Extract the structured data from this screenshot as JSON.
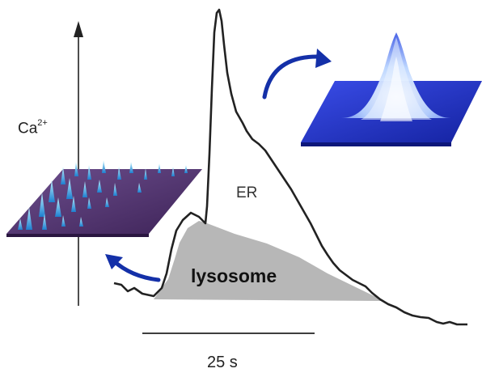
{
  "labels": {
    "ion": "Ca",
    "ion_charge": "2+",
    "er": "ER",
    "lysosome": "lysosome",
    "time_scale": "25 s"
  },
  "colors": {
    "trace": "#222222",
    "lysosome_fill": "#b7b7b7",
    "arrow": "#1430a8",
    "plane_left": "#5a3a7a",
    "plane_right": "#2233c8",
    "spike": "#4cc4ee"
  }
}
